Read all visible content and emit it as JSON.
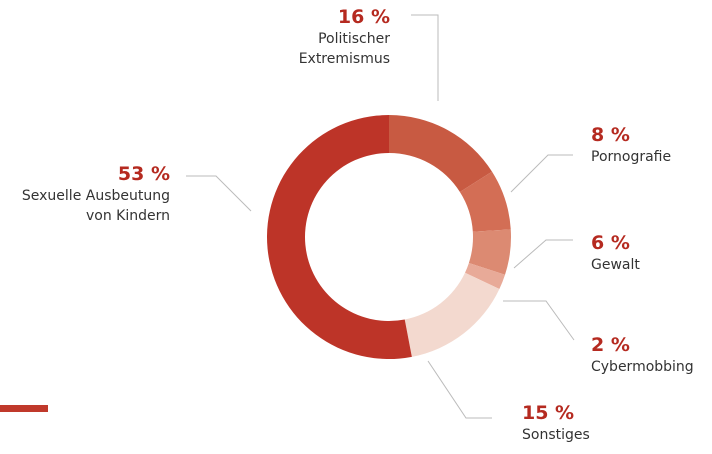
{
  "chart_data": {
    "type": "pie",
    "donut": true,
    "slices": [
      {
        "label": "Politischer Extremismus",
        "label_lines": [
          "Politischer",
          "Extremismus"
        ],
        "value": 16,
        "value_label": "16 %",
        "color": "#c85a42"
      },
      {
        "label": "Pornografie",
        "label_lines": [
          "Pornografie"
        ],
        "value": 8,
        "value_label": "8 %",
        "color": "#d36e55"
      },
      {
        "label": "Gewalt",
        "label_lines": [
          "Gewalt"
        ],
        "value": 6,
        "value_label": "6 %",
        "color": "#dc8a72"
      },
      {
        "label": "Cybermobbing",
        "label_lines": [
          "Cybermobbing"
        ],
        "value": 2,
        "value_label": "2 %",
        "color": "#e8aa98"
      },
      {
        "label": "Sonstiges",
        "label_lines": [
          "Sonstiges"
        ],
        "value": 15,
        "value_label": "15 %",
        "color": "#f3d9cf"
      },
      {
        "label": "Sexuelle Ausbeutung von Kindern",
        "label_lines": [
          "Sexuelle Ausbeutung",
          "von Kindern"
        ],
        "value": 53,
        "value_label": "53 %",
        "color": "#bd3428"
      }
    ]
  },
  "colors": {
    "accent_bar": "#c0392b",
    "leader_line": "#bbbbbb",
    "percent_text": "#b52a20"
  }
}
